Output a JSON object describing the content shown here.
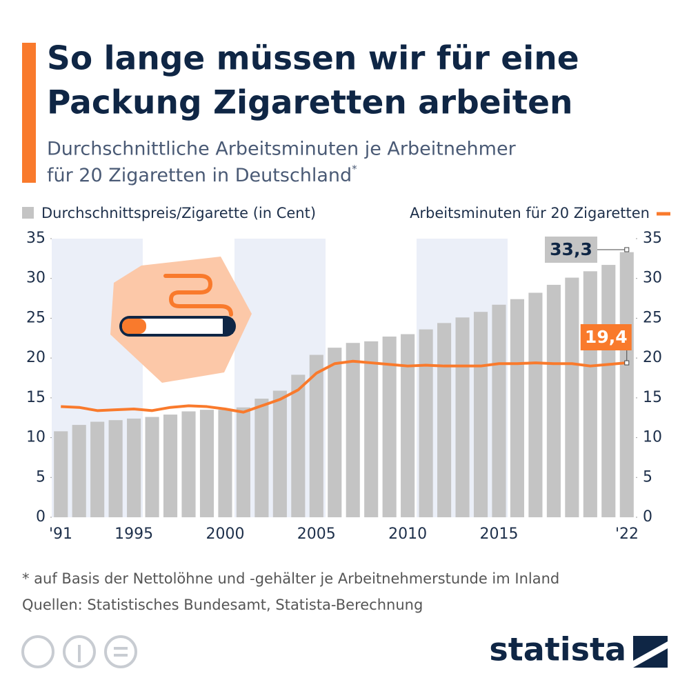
{
  "title": [
    "So lange müssen wir für eine",
    "Packung Zigaretten arbeiten"
  ],
  "subtitle": [
    "Durchschnittliche Arbeitsminuten je Arbeitnehmer",
    "für 20 Zigaretten in Deutschland"
  ],
  "subtitle_marker": "*",
  "footnote": "* auf Basis der Nettolöhne und -gehälter je Arbeitnehmerstunde im Inland",
  "source": "Quellen: Statistisches Bundesamt, Statista-Berechnung",
  "brand": "statista",
  "chart_data": {
    "type": "bar_line",
    "categories": [
      "'91",
      null,
      null,
      null,
      "1995",
      null,
      null,
      null,
      null,
      "2000",
      null,
      null,
      null,
      null,
      "2005",
      null,
      null,
      null,
      null,
      "2010",
      null,
      null,
      null,
      null,
      "2015",
      null,
      null,
      null,
      null,
      null,
      null,
      "'22"
    ],
    "series": [
      {
        "name": "Durchschnittspreis/Zigarette (in Cent)",
        "color": "#c4c4c4",
        "type": "bar",
        "values": [
          10.8,
          11.6,
          12.0,
          12.2,
          12.4,
          12.6,
          12.9,
          13.3,
          13.5,
          13.5,
          13.8,
          14.9,
          15.9,
          17.9,
          20.4,
          21.3,
          21.9,
          22.1,
          22.7,
          23.0,
          23.6,
          24.4,
          25.1,
          25.8,
          26.7,
          27.4,
          28.2,
          29.2,
          30.1,
          30.9,
          31.7,
          33.3
        ],
        "value_labels": [
          null,
          null,
          null,
          null,
          null,
          null,
          null,
          null,
          null,
          null,
          null,
          null,
          null,
          null,
          null,
          null,
          null,
          null,
          null,
          null,
          null,
          null,
          null,
          null,
          null,
          null,
          null,
          null,
          null,
          null,
          null,
          "33,3"
        ]
      },
      {
        "name": "Arbeitsminuten für 20 Zigaretten",
        "color": "#f97a2c",
        "type": "line",
        "axis": "y2",
        "values": [
          13.9,
          13.8,
          13.4,
          13.5,
          13.6,
          13.4,
          13.8,
          14.0,
          13.9,
          13.6,
          13.2,
          14.0,
          14.8,
          16.0,
          18.1,
          19.3,
          19.6,
          19.4,
          19.2,
          19.0,
          19.1,
          19.0,
          19.0,
          19.0,
          19.3,
          19.3,
          19.4,
          19.3,
          19.3,
          19.0,
          19.2,
          19.4
        ],
        "value_labels": [
          null,
          null,
          null,
          null,
          null,
          null,
          null,
          null,
          null,
          null,
          null,
          null,
          null,
          null,
          null,
          null,
          null,
          null,
          null,
          null,
          null,
          null,
          null,
          null,
          null,
          null,
          null,
          null,
          null,
          null,
          null,
          "19,4"
        ]
      }
    ],
    "ylim": [
      0,
      35
    ],
    "yticks": [
      0,
      5,
      10,
      15,
      20,
      25,
      30,
      35
    ],
    "y2lim": [
      0,
      35
    ],
    "y2ticks": [
      0,
      5,
      10,
      15,
      20,
      25,
      30,
      35
    ],
    "legend": "top"
  }
}
